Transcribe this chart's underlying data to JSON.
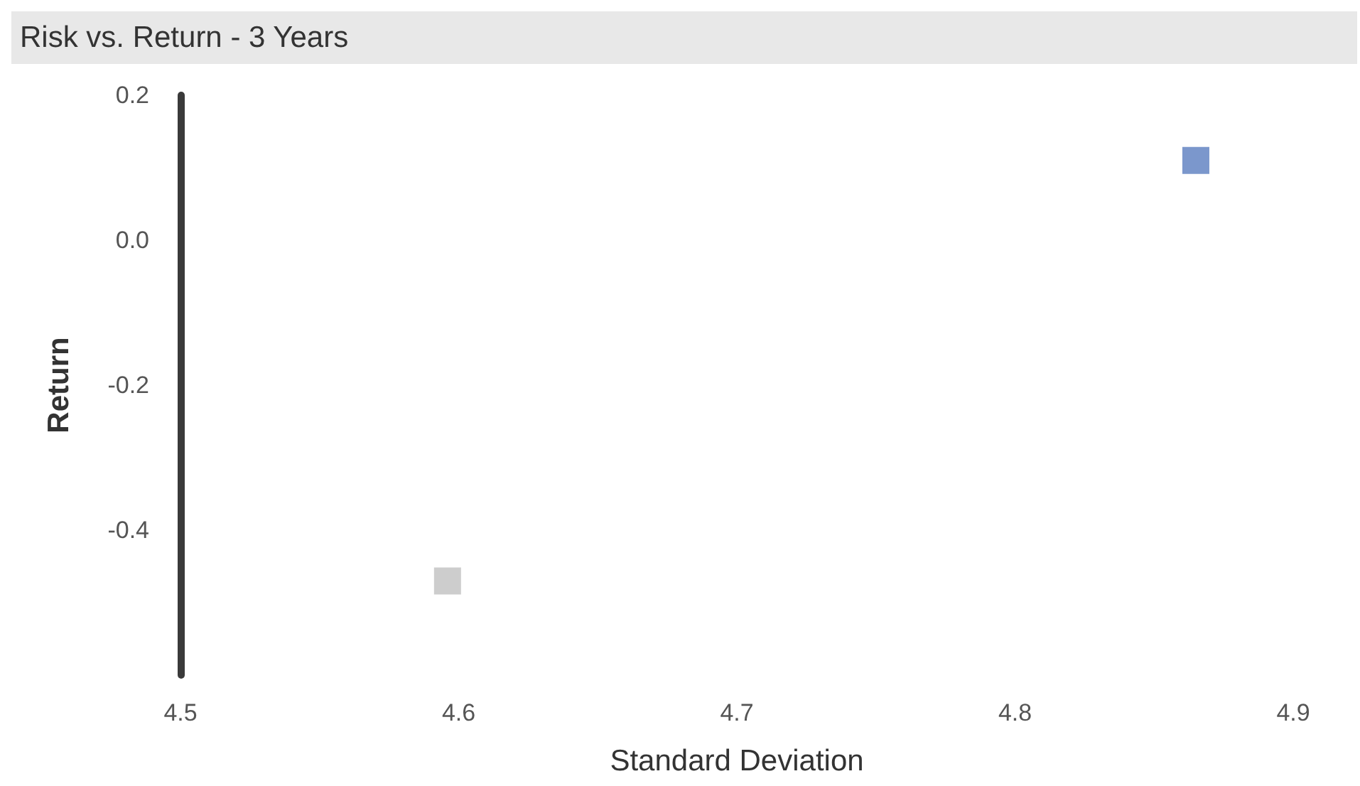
{
  "chart_data": {
    "type": "scatter",
    "title": "Risk vs. Return - 3 Years",
    "xlabel": "Standard Deviation",
    "ylabel": "Return",
    "xlim": [
      4.5,
      4.9
    ],
    "xticks": [
      4.5,
      4.6,
      4.7,
      4.8,
      4.9
    ],
    "ylim": [
      -0.6,
      0.2
    ],
    "yticks": [
      -0.4,
      -0.2,
      {
        "value": 0,
        "label": "0.0"
      },
      0.2
    ],
    "marker": "square",
    "grid": false,
    "series": [
      {
        "color": "#5a7dbf",
        "x": [
          4.865
        ],
        "values": [
          0.11
        ]
      },
      {
        "color": "#c0c0c0",
        "x": [
          4.596
        ],
        "values": [
          -0.47
        ]
      }
    ]
  }
}
